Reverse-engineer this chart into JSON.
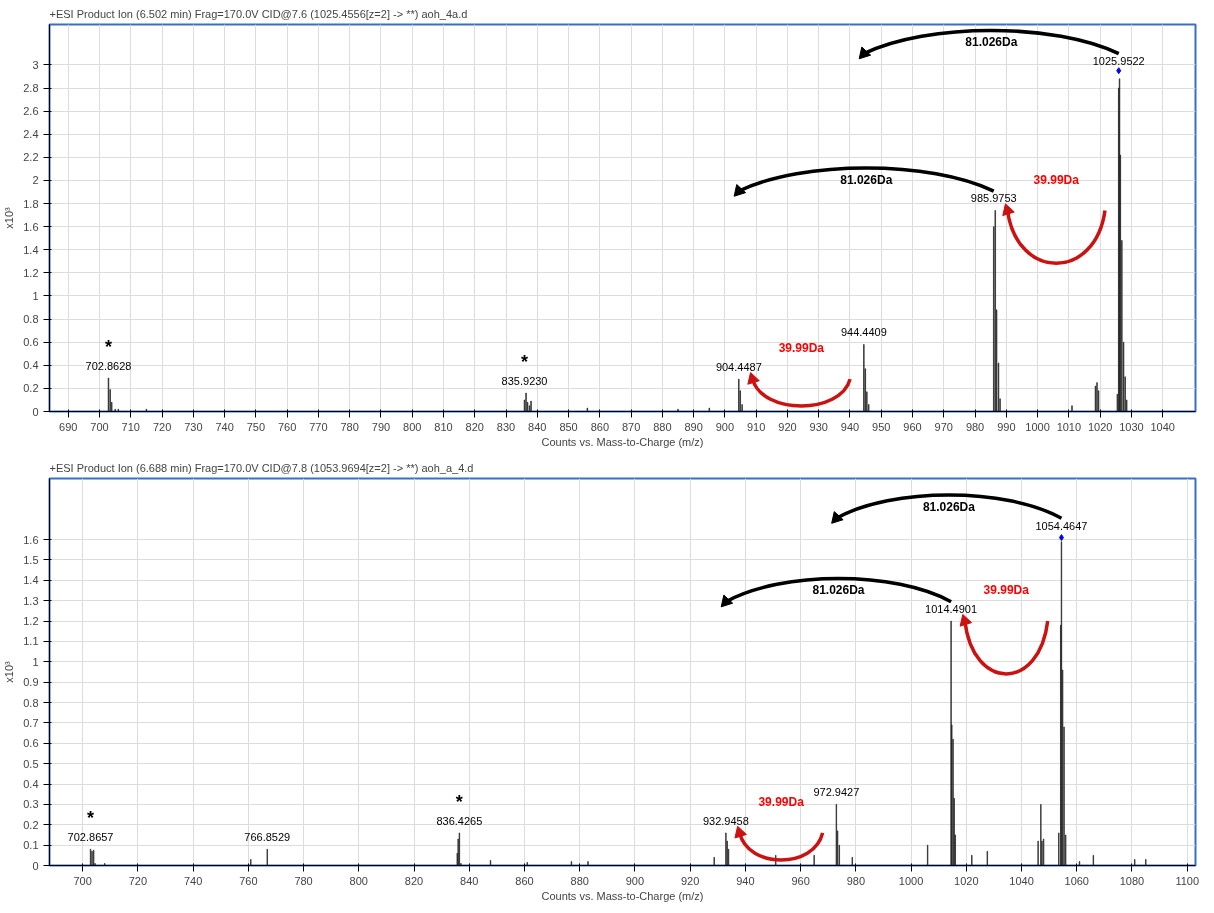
{
  "chart_data": [
    {
      "type": "bar",
      "title": "+ESI Product Ion (6.502 min) Frag=170.0V CID@7.6 (1025.4556[z=2] -> **) aoh_4a.d",
      "xlabel": "Counts vs. Mass-to-Charge (m/z)",
      "ylabel": "x10³",
      "series": [
        {
          "color": "#222222",
          "x": [
            702.86,
            703.4,
            703.9,
            705,
            706,
            715,
            835.9,
            836.4,
            836.9,
            837.5,
            838,
            856,
            885,
            895,
            904.45,
            904.9,
            905.5,
            944.44,
            944.9,
            945.4,
            946,
            985.98,
            986.45,
            986.9,
            987.5,
            988,
            1011,
            1018.5,
            1019,
            1019.5,
            1025.5,
            1025.95,
            1026.2,
            1026.45,
            1026.95,
            1027.5,
            1028,
            1028.5
          ],
          "values": [
            0.29,
            0.19,
            0.08,
            0.02,
            0.02,
            0.02,
            0.1,
            0.16,
            0.08,
            0.05,
            0.09,
            0.03,
            0.02,
            0.03,
            0.28,
            0.18,
            0.06,
            0.58,
            0.37,
            0.17,
            0.06,
            1.6,
            1.74,
            0.88,
            0.42,
            0.11,
            0.05,
            0.22,
            0.25,
            0.18,
            0.15,
            2.8,
            2.88,
            2.22,
            1.48,
            0.6,
            0.3,
            0.1
          ]
        },
        {
          "type": "scatter",
          "color": "#0000ff",
          "marker": "diamond",
          "x": [
            1025.9522
          ],
          "values": [
            2.95
          ]
        }
      ],
      "xlim": [
        684,
        1050.5
      ],
      "ylim": [
        0,
        3.35
      ],
      "xticks": [
        690,
        700,
        710,
        720,
        730,
        740,
        750,
        760,
        770,
        780,
        790,
        800,
        810,
        820,
        830,
        840,
        850,
        860,
        870,
        880,
        890,
        900,
        910,
        920,
        930,
        940,
        950,
        960,
        970,
        980,
        990,
        1000,
        1010,
        1020,
        1030,
        1040
      ],
      "yticks": [
        0,
        0.2,
        0.4,
        0.6,
        0.8,
        1,
        1.2,
        1.4,
        1.6,
        1.8,
        2,
        2.2,
        2.4,
        2.6,
        2.8,
        3
      ],
      "grid": true,
      "annotations": [
        {
          "text": "702.8628",
          "x": 702.8628,
          "y": 0.29
        },
        {
          "text": "*",
          "x": 702.8628,
          "y": 0.29
        },
        {
          "text": "835.9230",
          "x": 835.923,
          "y": 0.16
        },
        {
          "text": "*",
          "x": 835.923,
          "y": 0.16
        },
        {
          "text": "904.4487",
          "x": 904.4487,
          "y": 0.28
        },
        {
          "text": "944.4409",
          "x": 944.4409,
          "y": 0.58
        },
        {
          "text": "985.9753",
          "x": 985.9753,
          "y": 1.74
        },
        {
          "text": "1025.9522",
          "x": 1025.9522,
          "y": 2.93
        },
        "81.026Da",
        "81.026Da",
        "39.99Da",
        "39.99Da"
      ]
    },
    {
      "type": "bar",
      "title": "+ESI Product Ion (6.688 min) Frag=170.0V CID@7.8 (1053.9694[z=2] -> **) aoh_a_4.d",
      "xlabel": "Counts vs. Mass-to-Charge (m/z)",
      "ylabel": "x10³",
      "series": [
        {
          "color": "#222222",
          "x": [
            702.87,
            703.4,
            704,
            704.5,
            708,
            760.9,
            766.85,
            835.65,
            835.98,
            836.43,
            837,
            847.7,
            861,
            877,
            883,
            928.7,
            932.95,
            933.4,
            933.9,
            951,
            964.9,
            972.94,
            973.4,
            974,
            978.7,
            1006,
            1014.49,
            1014.75,
            1015.2,
            1015.6,
            1016,
            1022,
            1027.6,
            1046,
            1047,
            1047.4,
            1048,
            1053.5,
            1054.2,
            1054.46,
            1054.9,
            1055.4,
            1056,
            1061,
            1066,
            1081,
            1085
          ],
          "values": [
            0.08,
            0.07,
            0.075,
            0.01,
            0.01,
            0.03,
            0.08,
            0.06,
            0.13,
            0.16,
            0.01,
            0.025,
            0.015,
            0.02,
            0.02,
            0.04,
            0.16,
            0.12,
            0.08,
            0.05,
            0.05,
            0.3,
            0.17,
            0.1,
            0.04,
            0.1,
            1.2,
            0.69,
            0.62,
            0.33,
            0.15,
            0.05,
            0.07,
            0.12,
            0.3,
            0.12,
            0.13,
            0.16,
            1.18,
            1.59,
            0.96,
            0.68,
            0.15,
            0.02,
            0.05,
            0.03,
            0.03
          ]
        },
        {
          "type": "scatter",
          "color": "#0000ff",
          "marker": "diamond",
          "x": [
            1054.4647
          ],
          "values": [
            1.61
          ]
        }
      ],
      "xlim": [
        688,
        1103
      ],
      "ylim": [
        0,
        1.9
      ],
      "xticks": [
        700,
        720,
        740,
        760,
        780,
        800,
        820,
        840,
        860,
        880,
        900,
        920,
        940,
        960,
        980,
        1000,
        1020,
        1040,
        1060,
        1080,
        1100
      ],
      "yticks": [
        0,
        0.1,
        0.2,
        0.3,
        0.4,
        0.5,
        0.6,
        0.7,
        0.8,
        0.9,
        1,
        1.1,
        1.2,
        1.3,
        1.4,
        1.5,
        1.6
      ],
      "grid": true,
      "annotations": [
        {
          "text": "702.8657",
          "x": 702.8657,
          "y": 0.08
        },
        {
          "text": "*",
          "x": 702.8657,
          "y": 0.08
        },
        {
          "text": "766.8529",
          "x": 766.8529,
          "y": 0.08
        },
        {
          "text": "836.4265",
          "x": 836.4265,
          "y": 0.16
        },
        {
          "text": "*",
          "x": 836.4265,
          "y": 0.16
        },
        {
          "text": "932.9458",
          "x": 932.9458,
          "y": 0.16
        },
        {
          "text": "972.9427",
          "x": 972.9427,
          "y": 0.3
        },
        {
          "text": "1014.4901",
          "x": 1014.4901,
          "y": 1.2
        },
        {
          "text": "1054.4647",
          "x": 1054.4647,
          "y": 1.61
        },
        "81.026Da",
        "81.026Da",
        "39.99Da",
        "39.99Da"
      ]
    }
  ]
}
